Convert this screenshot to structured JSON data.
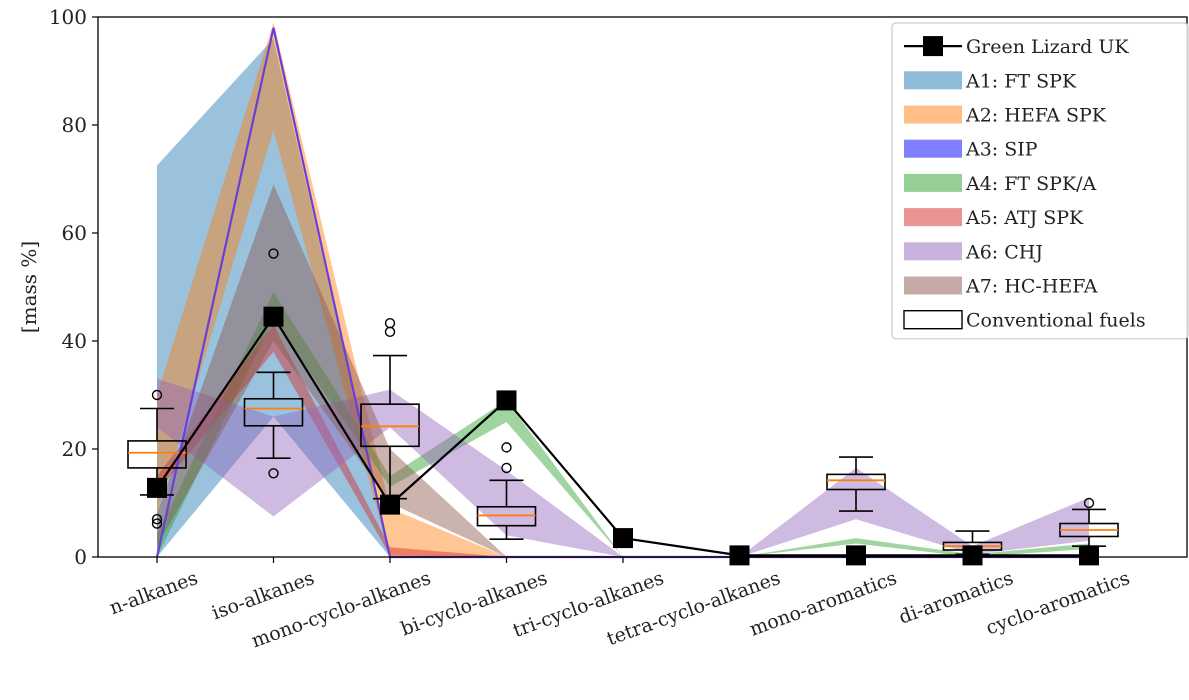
{
  "chart_data": {
    "type": "line",
    "ylabel": "[mass %]",
    "xlabel": "",
    "ylim": [
      0,
      100
    ],
    "yticks": [
      0,
      20,
      40,
      60,
      80,
      100
    ],
    "grid": false,
    "legend_position": "top-right",
    "categories": [
      "n-alkanes",
      "iso-alkanes",
      "mono-cyclo-alkanes",
      "bi-cyclo-alkanes",
      "tri-cyclo-alkanes",
      "tetra-cyclo-alkanes",
      "mono-aromatics",
      "di-aromatics",
      "cyclo-aromatics"
    ],
    "line_series": {
      "name": "Green Lizard UK",
      "color": "#000000",
      "values": [
        12.8,
        44.5,
        9.7,
        29.0,
        3.5,
        0.3,
        0.3,
        0.3,
        0.3
      ]
    },
    "band_series": [
      {
        "name": "A1: FT SPK",
        "color": "#1f77b4",
        "lower": [
          0,
          26,
          0,
          0,
          0,
          0,
          0,
          0,
          0
        ],
        "upper": [
          72.5,
          96,
          0,
          0,
          0,
          0,
          0,
          0,
          0
        ]
      },
      {
        "name": "A2: HEFA SPK",
        "color": "#ff7f0e",
        "lower": [
          8,
          79,
          0,
          0,
          0,
          0,
          0,
          0,
          0
        ],
        "upper": [
          30,
          99,
          9,
          0,
          0,
          0,
          0,
          0,
          0
        ]
      },
      {
        "name": "A3: SIP",
        "color": "#0000ff",
        "lower": [
          0,
          98,
          0,
          0,
          0,
          0,
          0,
          0,
          0
        ],
        "upper": [
          0,
          98,
          0,
          0,
          0,
          0,
          0,
          0,
          0
        ]
      },
      {
        "name": "A4: FT SPK/A",
        "color": "#2ca02c",
        "lower": [
          0,
          44,
          13,
          25,
          0,
          0,
          2.5,
          0,
          1.5
        ],
        "upper": [
          4,
          49,
          15,
          29,
          0,
          0,
          3.5,
          0.5,
          2.5
        ]
      },
      {
        "name": "A5: ATJ SPK",
        "color": "#d62728",
        "lower": [
          12,
          38,
          0.3,
          0,
          0,
          0,
          0,
          0,
          0
        ],
        "upper": [
          15,
          43,
          1.8,
          0,
          0,
          0,
          0,
          0,
          0
        ]
      },
      {
        "name": "A6: CHJ",
        "color": "#9467bd",
        "lower": [
          24,
          7.5,
          24,
          4,
          0,
          0,
          7,
          0.5,
          3
        ],
        "upper": [
          33,
          26,
          31,
          16,
          0,
          0,
          16.5,
          2,
          11
        ]
      },
      {
        "name": "A7: HC-HEFA",
        "color": "#8c564b",
        "lower": [
          2,
          40,
          10,
          0,
          0,
          0,
          0,
          0,
          0
        ],
        "upper": [
          8,
          69,
          20,
          0,
          0,
          0,
          0,
          0,
          0
        ]
      }
    ],
    "boxplot_series": {
      "name": "Conventional fuels",
      "median_color": "#ff7f0e",
      "boxes": [
        {
          "category": "n-alkanes",
          "whisker_low": 11.5,
          "q1": 16.5,
          "median": 19.3,
          "q3": 21.5,
          "whisker_high": 27.5,
          "outliers": [
            30,
            7,
            6.2
          ]
        },
        {
          "category": "iso-alkanes",
          "whisker_low": 18.3,
          "q1": 24.3,
          "median": 27.5,
          "q3": 29.3,
          "whisker_high": 34.2,
          "outliers": [
            56.2,
            15.5
          ]
        },
        {
          "category": "mono-cyclo-alkanes",
          "whisker_low": 10.8,
          "q1": 20.5,
          "median": 24.2,
          "q3": 28.3,
          "whisker_high": 37.3,
          "outliers": [
            43.3,
            41.7
          ]
        },
        {
          "category": "bi-cyclo-alkanes",
          "whisker_low": 3.3,
          "q1": 5.8,
          "median": 7.7,
          "q3": 9.3,
          "whisker_high": 14.2,
          "outliers": [
            20.3,
            16.5
          ]
        },
        {
          "category": "mono-aromatics",
          "whisker_low": 8.5,
          "q1": 12.5,
          "median": 14.2,
          "q3": 15.3,
          "whisker_high": 18.5,
          "outliers": []
        },
        {
          "category": "di-aromatics",
          "whisker_low": 0.5,
          "q1": 1.3,
          "median": 2.0,
          "q3": 2.7,
          "whisker_high": 4.8,
          "outliers": []
        },
        {
          "category": "cyclo-aromatics",
          "whisker_low": 2.0,
          "q1": 3.8,
          "median": 5.0,
          "q3": 6.2,
          "whisker_high": 8.8,
          "outliers": [
            10.0
          ]
        }
      ]
    }
  }
}
